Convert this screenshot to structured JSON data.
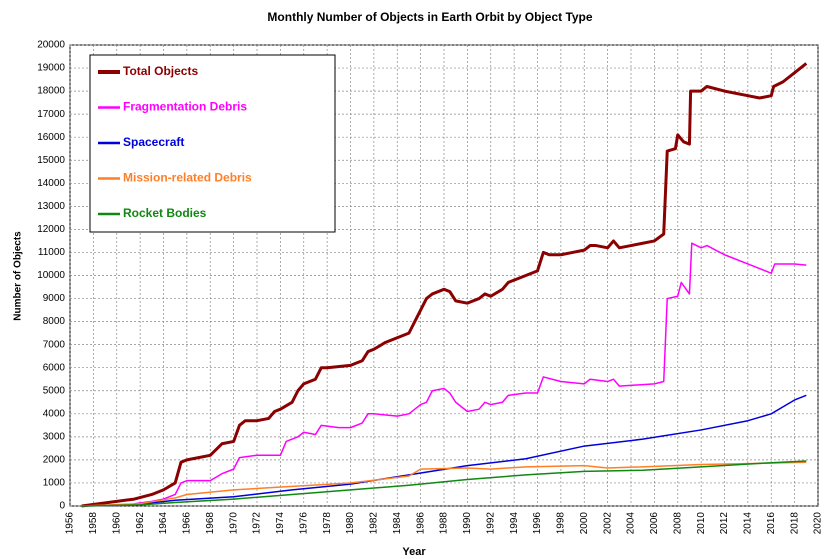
{
  "chart_data": {
    "type": "line",
    "title": "Monthly Number of Objects in Earth Orbit by Object Type",
    "x_label": "Year",
    "y_label": "Number of Objects",
    "xlim": [
      1956,
      2020
    ],
    "xticks": [
      1956,
      1958,
      1960,
      1962,
      1964,
      1966,
      1968,
      1970,
      1972,
      1974,
      1976,
      1978,
      1980,
      1982,
      1984,
      1986,
      1988,
      1990,
      1992,
      1994,
      1996,
      1998,
      2000,
      2002,
      2004,
      2006,
      2008,
      2010,
      2012,
      2014,
      2016,
      2018,
      2020
    ],
    "ylim": [
      0,
      20000
    ],
    "yticks": [
      0,
      1000,
      2000,
      3000,
      4000,
      5000,
      6000,
      7000,
      8000,
      9000,
      10000,
      11000,
      12000,
      13000,
      14000,
      15000,
      16000,
      17000,
      18000,
      19000,
      20000
    ],
    "grid": true,
    "legend": "upper left",
    "series": [
      {
        "name": "Total Objects",
        "color": "#8b0000",
        "width": 3,
        "x": [
          1957,
          1961.5,
          1963,
          1964,
          1965,
          1965.5,
          1966,
          1967,
          1968,
          1969,
          1970,
          1970.5,
          1971,
          1972,
          1973,
          1973.5,
          1974,
          1975,
          1975.5,
          1976,
          1977,
          1977.5,
          1978,
          1980,
          1981,
          1981.5,
          1982,
          1983,
          1984,
          1985,
          1985.5,
          1986,
          1986.5,
          1987,
          1988,
          1988.5,
          1989,
          1990,
          1991,
          1991.5,
          1992,
          1993,
          1993.5,
          1994,
          1995,
          1996,
          1996.5,
          1997,
          1998,
          1999,
          2000,
          2000.5,
          2001,
          2002,
          2002.5,
          2003,
          2004,
          2005,
          2006,
          2006.8,
          2007.1,
          2007.8,
          2008,
          2008.5,
          2009,
          2009.1,
          2010,
          2010.5,
          2012,
          2014,
          2015,
          2016,
          2016.2,
          2017,
          2018,
          2019
        ],
        "values": [
          0,
          300,
          500,
          700,
          1000,
          1900,
          2000,
          2100,
          2200,
          2700,
          2800,
          3500,
          3700,
          3700,
          3800,
          4100,
          4200,
          4500,
          5000,
          5300,
          5500,
          6000,
          6000,
          6100,
          6300,
          6700,
          6800,
          7100,
          7300,
          7500,
          8000,
          8500,
          9000,
          9200,
          9400,
          9300,
          8900,
          8800,
          9000,
          9200,
          9100,
          9400,
          9700,
          9800,
          10000,
          10200,
          11000,
          10900,
          10900,
          11000,
          11100,
          11300,
          11300,
          11200,
          11500,
          11200,
          11300,
          11400,
          11500,
          11800,
          15400,
          15500,
          16100,
          15800,
          15700,
          18000,
          18000,
          18200,
          18000,
          17800,
          17700,
          17800,
          18200,
          18400,
          18800,
          19200
        ]
      },
      {
        "name": "Fragmentation Debris",
        "color": "#ff00ff",
        "width": 1.5,
        "x": [
          1961.5,
          1963,
          1964,
          1965,
          1965.5,
          1966,
          1968,
          1969,
          1970,
          1970.5,
          1972,
          1974,
          1974.5,
          1975.5,
          1976,
          1977,
          1977.5,
          1979,
          1980,
          1981,
          1981.5,
          1982,
          1984,
          1985,
          1986,
          1986.5,
          1987,
          1988,
          1988.5,
          1989,
          1990,
          1991,
          1991.5,
          1992,
          1993,
          1993.5,
          1995,
          1996,
          1996.5,
          1998,
          2000,
          2000.5,
          2002,
          2002.5,
          2003,
          2006,
          2006.8,
          2007.1,
          2008,
          2008.3,
          2009,
          2009.2,
          2010,
          2010.5,
          2012,
          2014,
          2015,
          2016,
          2016.3,
          2018,
          2019
        ],
        "values": [
          100,
          200,
          300,
          500,
          1000,
          1100,
          1100,
          1400,
          1600,
          2100,
          2200,
          2200,
          2800,
          3000,
          3200,
          3100,
          3500,
          3400,
          3400,
          3600,
          4000,
          4000,
          3900,
          4000,
          4400,
          4500,
          5000,
          5100,
          4900,
          4500,
          4100,
          4200,
          4500,
          4400,
          4500,
          4800,
          4900,
          4900,
          5600,
          5400,
          5300,
          5500,
          5400,
          5500,
          5200,
          5300,
          5400,
          9000,
          9100,
          9700,
          9200,
          11400,
          11200,
          11300,
          10900,
          10500,
          10300,
          10100,
          10500,
          10500,
          10450
        ]
      },
      {
        "name": "Spacecraft",
        "color": "#0000dd",
        "width": 1.5,
        "x": [
          1957,
          1960,
          1962,
          1965,
          1970,
          1975,
          1980,
          1985,
          1990,
          1995,
          2000,
          2005,
          2010,
          2014,
          2016,
          2017,
          2018,
          2019
        ],
        "values": [
          0,
          20,
          80,
          250,
          400,
          700,
          950,
          1350,
          1750,
          2050,
          2600,
          2900,
          3300,
          3700,
          4000,
          4300,
          4600,
          4800
        ]
      },
      {
        "name": "Mission-related Debris",
        "color": "#ff7f27",
        "width": 1.5,
        "x": [
          1957,
          1962,
          1965,
          1966,
          1970,
          1975,
          1980,
          1985,
          1986,
          1990,
          1992,
          1995,
          2000,
          2002,
          2005,
          2010,
          2015,
          2019
        ],
        "values": [
          0,
          100,
          350,
          500,
          700,
          850,
          1000,
          1300,
          1600,
          1650,
          1600,
          1700,
          1750,
          1650,
          1700,
          1800,
          1850,
          1900
        ]
      },
      {
        "name": "Rocket Bodies",
        "color": "#118811",
        "width": 1.5,
        "x": [
          1957,
          1962,
          1965,
          1970,
          1975,
          1980,
          1985,
          1990,
          1995,
          2000,
          2005,
          2010,
          2015,
          2019
        ],
        "values": [
          0,
          50,
          150,
          300,
          500,
          700,
          900,
          1150,
          1350,
          1500,
          1550,
          1700,
          1850,
          1950
        ]
      }
    ]
  }
}
